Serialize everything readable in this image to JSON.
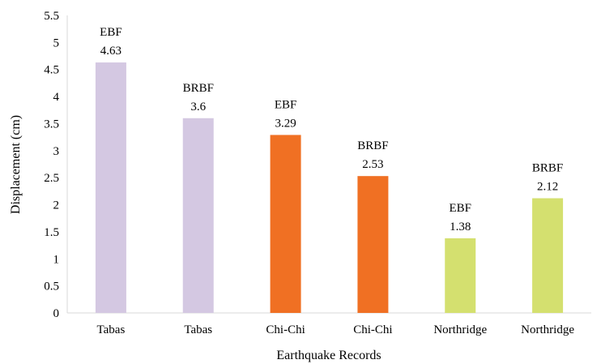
{
  "chart_data": {
    "type": "bar",
    "title": "",
    "xlabel": "Earthquake Records",
    "ylabel": "Displacement (cm)",
    "ylim": [
      0,
      5.5
    ],
    "ytick_step": 0.5,
    "y_ticks": [
      "0",
      "0.5",
      "1",
      "1.5",
      "2",
      "2.5",
      "3",
      "3.5",
      "4",
      "4.5",
      "5",
      "5.5"
    ],
    "grid": false,
    "categories": [
      "Tabas",
      "Tabas",
      "Chi-Chi",
      "Chi-Chi",
      "Northridge",
      "Northridge"
    ],
    "values": [
      4.63,
      3.6,
      3.29,
      2.53,
      1.38,
      2.12
    ],
    "bar_labels": [
      "EBF",
      "BRBF",
      "EBF",
      "BRBF",
      "EBF",
      "BRBF"
    ],
    "value_labels": [
      "4.63",
      "3.6",
      "3.29",
      "2.53",
      "1.38",
      "2.12"
    ],
    "bar_colors": [
      "#d4c8e2",
      "#d4c8e2",
      "#f07023",
      "#f07023",
      "#d4e06f",
      "#d4e06f"
    ]
  }
}
